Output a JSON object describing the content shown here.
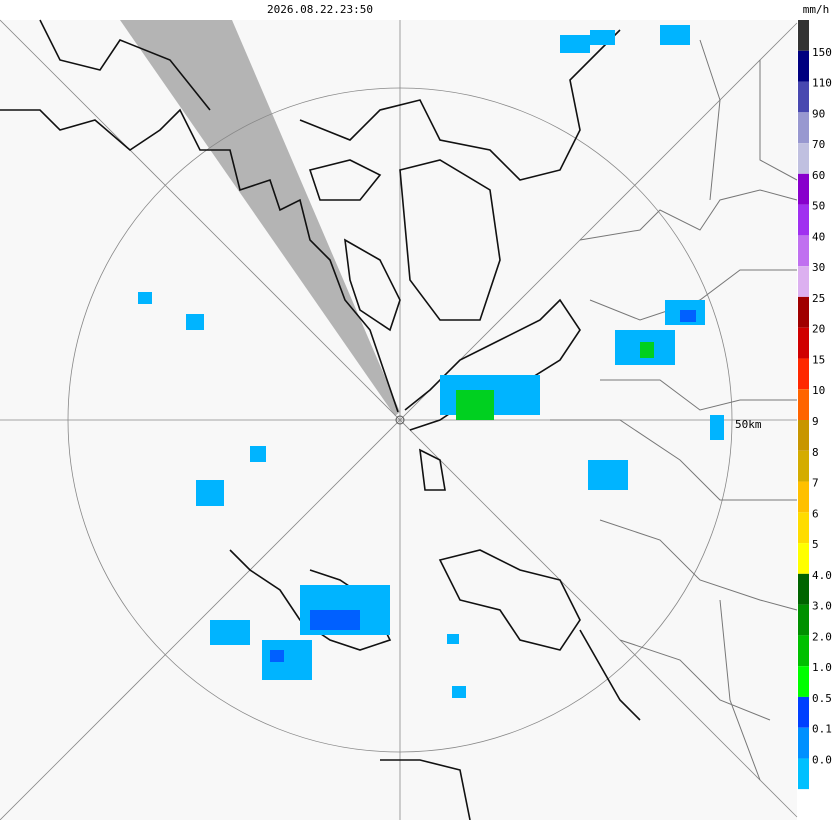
{
  "header": {
    "timestamp": "2026.08.22.23:50",
    "unit": "mm/h"
  },
  "map": {
    "range_label": "50km"
  },
  "legend": {
    "colors": [
      "#333333",
      "#000080",
      "#4848b0",
      "#9898d0",
      "#c0c0e0",
      "#8800cc",
      "#a030f0",
      "#c070f0",
      "#dcb0f0",
      "#a00000",
      "#d00000",
      "#ff2800",
      "#ff6400",
      "#c89600",
      "#d4ac00",
      "#ffc000",
      "#ffdc00",
      "#ffff00",
      "#006400",
      "#009000",
      "#00c000",
      "#00ff00",
      "#0040ff",
      "#0090ff",
      "#00c0ff",
      "#ffffff"
    ],
    "labels": [
      "150",
      "110",
      "90",
      "70",
      "60",
      "50",
      "40",
      "30",
      "25",
      "20",
      "15",
      "10",
      "9",
      "8",
      "7",
      "6",
      "5",
      "4.0",
      "3.0",
      "2.0",
      "1.0",
      "0.5",
      "0.1",
      "0.0"
    ]
  }
}
